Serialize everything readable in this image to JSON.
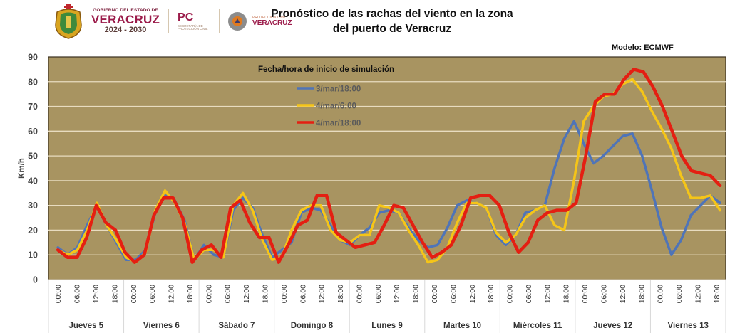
{
  "header": {
    "logos": {
      "gov_line1": "GOBIERNO DEL ESTADO DE",
      "gov_line2": "VERACRUZ",
      "gov_line3": "2024 - 2030",
      "pc_big": "PC",
      "pc_small": "SECRETARÍA DE PROTECCIÓN CIVIL",
      "pcv_small": "PROTECCIÓN CIVIL",
      "pcv_big": "VERACRUZ"
    },
    "title_line1": "Pronóstico de las rachas del viento en la zona",
    "title_line2": "del puerto de Veracruz",
    "model": "Modelo: ECMWF"
  },
  "chart_data": {
    "type": "line",
    "title": "Pronóstico de las rachas del viento en la zona del puerto de Veracruz",
    "subtitle": "Modelo: ECMWF",
    "xlabel": "",
    "ylabel": "Km/h",
    "ylim": [
      0,
      90
    ],
    "yticks": [
      0,
      10,
      20,
      30,
      40,
      50,
      60,
      70,
      80,
      90
    ],
    "grid": true,
    "legend_title": "Fecha/hora de inicio de simulación",
    "legend_position": "top-left",
    "hours": [
      "00:00",
      "06:00",
      "12:00",
      "18:00"
    ],
    "days": [
      "Jueves 5",
      "Viernes 6",
      "Sábado 7",
      "Domingo 8",
      "Lunes 9",
      "Martes 10",
      "Miércoles 11",
      "Jueves 12",
      "Viernes 13"
    ],
    "colors": {
      "background": "#a89461",
      "grid": "#e8dcc0"
    },
    "series": [
      {
        "name": "3/mar/18:00",
        "color": "#4f74b8",
        "values": [
          13,
          10,
          13,
          22,
          30,
          22,
          15,
          8,
          8,
          12,
          27,
          34,
          32,
          24,
          8,
          14,
          10,
          9,
          28,
          33,
          29,
          18,
          9,
          12,
          15,
          27,
          29,
          28,
          22,
          16,
          14,
          18,
          21,
          27,
          28,
          27,
          21,
          16,
          13,
          14,
          21,
          30,
          32,
          31,
          29,
          18,
          14,
          18,
          27,
          28,
          30,
          45,
          57,
          64,
          55,
          47,
          50,
          54,
          58,
          59,
          50,
          36,
          21,
          10,
          16,
          26,
          30,
          34,
          31
        ]
      },
      {
        "name": "4/mar/6:00",
        "color": "#f5c518",
        "values": [
          12,
          10,
          12,
          20,
          31,
          22,
          16,
          9,
          7,
          11,
          28,
          36,
          31,
          23,
          8,
          12,
          12,
          9,
          30,
          35,
          28,
          16,
          8,
          9,
          20,
          28,
          30,
          30,
          20,
          16,
          15,
          18,
          18,
          30,
          29,
          27,
          20,
          14,
          7,
          8,
          13,
          23,
          31,
          31,
          29,
          19,
          15,
          18,
          25,
          28,
          30,
          22,
          20,
          40,
          64,
          70,
          74,
          75,
          79,
          81,
          76,
          68,
          61,
          53,
          42,
          33,
          33,
          34,
          28
        ]
      },
      {
        "name": "4/mar/18:00",
        "color": "#e41f12",
        "values": [
          12,
          9,
          9,
          17,
          30,
          23,
          20,
          11,
          7,
          10,
          26,
          33,
          33,
          25,
          7,
          12,
          14,
          9,
          29,
          32,
          23,
          17,
          17,
          7,
          14,
          22,
          24,
          34,
          34,
          19,
          16,
          13,
          14,
          15,
          22,
          30,
          29,
          22,
          15,
          9,
          11,
          14,
          22,
          33,
          34,
          34,
          30,
          19,
          11,
          15,
          24,
          27,
          28,
          28,
          31,
          50,
          72,
          75,
          75,
          81,
          85,
          84,
          78,
          70,
          60,
          50,
          44,
          43,
          42,
          38
        ]
      }
    ]
  }
}
